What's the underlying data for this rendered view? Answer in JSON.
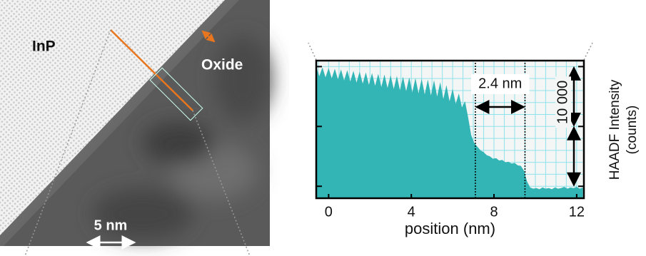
{
  "image": {
    "material": "InP",
    "oxide": "Oxide",
    "scale_bar": "5 nm"
  },
  "chart_data": {
    "type": "area",
    "x": [
      -0.6,
      -0.45,
      -0.3,
      -0.15,
      0,
      0.15,
      0.3,
      0.45,
      0.6,
      0.75,
      0.9,
      1.05,
      1.2,
      1.35,
      1.5,
      1.65,
      1.8,
      1.95,
      2.1,
      2.25,
      2.4,
      2.55,
      2.7,
      2.85,
      3.0,
      3.15,
      3.3,
      3.45,
      3.6,
      3.75,
      3.9,
      4.05,
      4.2,
      4.35,
      4.5,
      4.65,
      4.8,
      4.95,
      5.1,
      5.25,
      5.4,
      5.55,
      5.7,
      5.85,
      6.0,
      6.15,
      6.3,
      6.45,
      6.6,
      6.75,
      6.9,
      7.05,
      7.2,
      7.35,
      7.5,
      7.65,
      7.8,
      7.95,
      8.1,
      8.25,
      8.4,
      8.55,
      8.7,
      8.85,
      9.0,
      9.15,
      9.3,
      9.45,
      9.6,
      9.75,
      9.9,
      10.05,
      10.2,
      10.35,
      10.5,
      10.65,
      10.8,
      10.95,
      11.1,
      11.25,
      11.4,
      11.55,
      11.7,
      11.85,
      12.0,
      12.15,
      12.3
    ],
    "values": [
      30000,
      28400,
      29880,
      28200,
      29760,
      28050,
      29640,
      27870,
      29520,
      27690,
      29400,
      27510,
      29280,
      27330,
      29160,
      27150,
      29040,
      26970,
      28920,
      26790,
      28800,
      26610,
      28680,
      26430,
      28560,
      26250,
      28440,
      26070,
      28320,
      25890,
      28200,
      25710,
      28080,
      25530,
      27960,
      25350,
      27840,
      25170,
      27720,
      25000,
      27400,
      24600,
      26900,
      24200,
      26300,
      23800,
      25500,
      23200,
      24200,
      21500,
      18500,
      17200,
      16600,
      16000,
      15700,
      15200,
      15000,
      14600,
      14700,
      14300,
      14400,
      14000,
      14100,
      13800,
      13900,
      13500,
      13400,
      12600,
      10800,
      9800,
      9600,
      9700,
      9500,
      9800,
      9600,
      9700,
      9500,
      9800,
      9600,
      9700,
      9900,
      9600,
      9800,
      9700,
      9900,
      9600,
      9800
    ],
    "color": "#33b5b5",
    "xlim": [
      -0.6,
      12.35
    ],
    "ylim": [
      8000,
      31000
    ],
    "xticks": [
      0,
      4,
      8,
      12
    ],
    "yticks": [
      10000,
      20000,
      30000
    ],
    "xlabel": "position (nm)",
    "ylabel": [
      "HAADF Intensity",
      "(counts)"
    ],
    "grid": true,
    "grid_color": "#8fe3ea",
    "grid_xstep": 0.5,
    "grid_ystep": 2000,
    "annotations": [
      {
        "text": "2.4 nm",
        "x": [
          7.1,
          9.5
        ]
      },
      {
        "text": "10 000",
        "y": [
          20000,
          30000
        ]
      }
    ]
  }
}
